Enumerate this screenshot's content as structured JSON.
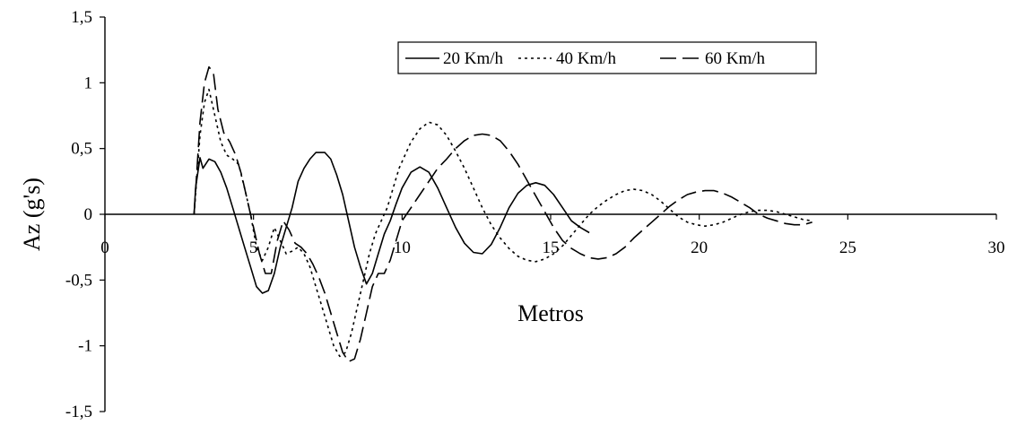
{
  "chart_data": {
    "type": "line",
    "title": "",
    "xlabel": "Metros",
    "ylabel": "Az (g's)",
    "xlim": [
      0,
      30
    ],
    "ylim": [
      -1.5,
      1.5
    ],
    "xticks": [
      0,
      5,
      10,
      15,
      20,
      25,
      30
    ],
    "xtick_labels": [
      "0",
      "5",
      "10",
      "15",
      "20",
      "25",
      "30"
    ],
    "yticks": [
      -1.5,
      -1,
      -0.5,
      0,
      0.5,
      1,
      1.5
    ],
    "ytick_labels": [
      "-1,5",
      "-1",
      "-0,5",
      "0",
      "0,5",
      "1",
      "1,5"
    ],
    "grid": false,
    "legend_position": "top-right",
    "series": [
      {
        "name": "20 Km/h",
        "style": "solid",
        "points": [
          [
            3.0,
            0
          ],
          [
            3.05,
            0.2
          ],
          [
            3.2,
            0.43
          ],
          [
            3.3,
            0.35
          ],
          [
            3.5,
            0.42
          ],
          [
            3.7,
            0.4
          ],
          [
            3.9,
            0.32
          ],
          [
            4.1,
            0.2
          ],
          [
            4.3,
            0.05
          ],
          [
            4.5,
            -0.1
          ],
          [
            4.7,
            -0.25
          ],
          [
            4.9,
            -0.4
          ],
          [
            5.1,
            -0.55
          ],
          [
            5.3,
            -0.6
          ],
          [
            5.5,
            -0.58
          ],
          [
            5.7,
            -0.45
          ],
          [
            5.9,
            -0.25
          ],
          [
            6.1,
            -0.1
          ],
          [
            6.3,
            0.05
          ],
          [
            6.5,
            0.25
          ],
          [
            6.7,
            0.35
          ],
          [
            6.9,
            0.42
          ],
          [
            7.1,
            0.47
          ],
          [
            7.4,
            0.47
          ],
          [
            7.6,
            0.42
          ],
          [
            7.8,
            0.3
          ],
          [
            8.0,
            0.15
          ],
          [
            8.2,
            -0.05
          ],
          [
            8.4,
            -0.25
          ],
          [
            8.6,
            -0.4
          ],
          [
            8.8,
            -0.53
          ],
          [
            9.0,
            -0.45
          ],
          [
            9.2,
            -0.3
          ],
          [
            9.4,
            -0.15
          ],
          [
            9.6,
            -0.05
          ],
          [
            9.8,
            0.08
          ],
          [
            10.0,
            0.2
          ],
          [
            10.3,
            0.32
          ],
          [
            10.6,
            0.36
          ],
          [
            10.9,
            0.32
          ],
          [
            11.2,
            0.2
          ],
          [
            11.5,
            0.05
          ],
          [
            11.8,
            -0.1
          ],
          [
            12.1,
            -0.22
          ],
          [
            12.4,
            -0.29
          ],
          [
            12.7,
            -0.3
          ],
          [
            13.0,
            -0.23
          ],
          [
            13.3,
            -0.1
          ],
          [
            13.6,
            0.05
          ],
          [
            13.9,
            0.16
          ],
          [
            14.2,
            0.22
          ],
          [
            14.5,
            0.24
          ],
          [
            14.8,
            0.22
          ],
          [
            15.1,
            0.15
          ],
          [
            15.4,
            0.05
          ],
          [
            15.7,
            -0.05
          ],
          [
            16.0,
            -0.1
          ],
          [
            16.3,
            -0.14
          ]
        ]
      },
      {
        "name": "40 Km/h",
        "style": "dotted",
        "points": [
          [
            3.0,
            0
          ],
          [
            3.1,
            0.3
          ],
          [
            3.2,
            0.6
          ],
          [
            3.35,
            0.85
          ],
          [
            3.5,
            0.95
          ],
          [
            3.7,
            0.75
          ],
          [
            3.9,
            0.55
          ],
          [
            4.1,
            0.45
          ],
          [
            4.3,
            0.42
          ],
          [
            4.5,
            0.38
          ],
          [
            4.7,
            0.2
          ],
          [
            4.9,
            0.0
          ],
          [
            5.1,
            -0.25
          ],
          [
            5.3,
            -0.35
          ],
          [
            5.5,
            -0.25
          ],
          [
            5.7,
            -0.1
          ],
          [
            5.9,
            -0.2
          ],
          [
            6.1,
            -0.3
          ],
          [
            6.3,
            -0.28
          ],
          [
            6.5,
            -0.25
          ],
          [
            6.7,
            -0.3
          ],
          [
            6.9,
            -0.4
          ],
          [
            7.1,
            -0.55
          ],
          [
            7.3,
            -0.7
          ],
          [
            7.5,
            -0.85
          ],
          [
            7.7,
            -1.0
          ],
          [
            7.9,
            -1.08
          ],
          [
            8.1,
            -1.05
          ],
          [
            8.3,
            -0.9
          ],
          [
            8.5,
            -0.7
          ],
          [
            8.7,
            -0.5
          ],
          [
            8.9,
            -0.3
          ],
          [
            9.1,
            -0.15
          ],
          [
            9.3,
            -0.05
          ],
          [
            9.5,
            0.05
          ],
          [
            9.7,
            0.2
          ],
          [
            9.9,
            0.35
          ],
          [
            10.1,
            0.45
          ],
          [
            10.3,
            0.55
          ],
          [
            10.6,
            0.65
          ],
          [
            10.9,
            0.7
          ],
          [
            11.2,
            0.68
          ],
          [
            11.5,
            0.6
          ],
          [
            11.8,
            0.48
          ],
          [
            12.1,
            0.35
          ],
          [
            12.4,
            0.2
          ],
          [
            12.7,
            0.05
          ],
          [
            13.0,
            -0.08
          ],
          [
            13.3,
            -0.18
          ],
          [
            13.6,
            -0.26
          ],
          [
            13.9,
            -0.32
          ],
          [
            14.2,
            -0.35
          ],
          [
            14.5,
            -0.36
          ],
          [
            14.8,
            -0.34
          ],
          [
            15.1,
            -0.3
          ],
          [
            15.4,
            -0.24
          ],
          [
            15.7,
            -0.16
          ],
          [
            16.0,
            -0.08
          ],
          [
            16.3,
            0.0
          ],
          [
            16.6,
            0.06
          ],
          [
            16.9,
            0.11
          ],
          [
            17.2,
            0.15
          ],
          [
            17.5,
            0.18
          ],
          [
            17.8,
            0.19
          ],
          [
            18.1,
            0.18
          ],
          [
            18.4,
            0.15
          ],
          [
            18.7,
            0.1
          ],
          [
            19.0,
            0.04
          ],
          [
            19.3,
            -0.02
          ],
          [
            19.6,
            -0.06
          ],
          [
            19.9,
            -0.08
          ],
          [
            20.2,
            -0.09
          ],
          [
            20.5,
            -0.08
          ],
          [
            20.8,
            -0.06
          ],
          [
            21.1,
            -0.03
          ],
          [
            21.4,
            0.0
          ],
          [
            21.7,
            0.02
          ],
          [
            22.0,
            0.03
          ],
          [
            22.3,
            0.03
          ],
          [
            22.6,
            0.02
          ],
          [
            22.9,
            0.0
          ],
          [
            23.2,
            -0.02
          ],
          [
            23.5,
            -0.04
          ],
          [
            23.8,
            -0.05
          ]
        ]
      },
      {
        "name": "60 Km/h",
        "style": "dashed",
        "points": [
          [
            3.0,
            0
          ],
          [
            3.1,
            0.35
          ],
          [
            3.2,
            0.7
          ],
          [
            3.35,
            1.0
          ],
          [
            3.5,
            1.12
          ],
          [
            3.65,
            1.08
          ],
          [
            3.8,
            0.8
          ],
          [
            4.0,
            0.62
          ],
          [
            4.2,
            0.55
          ],
          [
            4.4,
            0.45
          ],
          [
            4.6,
            0.3
          ],
          [
            4.8,
            0.1
          ],
          [
            5.0,
            -0.1
          ],
          [
            5.2,
            -0.3
          ],
          [
            5.4,
            -0.45
          ],
          [
            5.6,
            -0.45
          ],
          [
            5.8,
            -0.2
          ],
          [
            6.0,
            -0.05
          ],
          [
            6.2,
            -0.12
          ],
          [
            6.4,
            -0.22
          ],
          [
            6.6,
            -0.25
          ],
          [
            6.8,
            -0.3
          ],
          [
            7.0,
            -0.38
          ],
          [
            7.2,
            -0.48
          ],
          [
            7.4,
            -0.6
          ],
          [
            7.6,
            -0.75
          ],
          [
            7.8,
            -0.9
          ],
          [
            8.0,
            -1.05
          ],
          [
            8.2,
            -1.12
          ],
          [
            8.4,
            -1.1
          ],
          [
            8.6,
            -0.95
          ],
          [
            8.8,
            -0.75
          ],
          [
            9.0,
            -0.55
          ],
          [
            9.2,
            -0.45
          ],
          [
            9.4,
            -0.45
          ],
          [
            9.6,
            -0.35
          ],
          [
            9.8,
            -0.2
          ],
          [
            10.0,
            -0.05
          ],
          [
            10.3,
            0.05
          ],
          [
            10.6,
            0.15
          ],
          [
            10.9,
            0.25
          ],
          [
            11.2,
            0.35
          ],
          [
            11.5,
            0.42
          ],
          [
            11.8,
            0.5
          ],
          [
            12.1,
            0.56
          ],
          [
            12.4,
            0.6
          ],
          [
            12.7,
            0.61
          ],
          [
            13.0,
            0.6
          ],
          [
            13.3,
            0.56
          ],
          [
            13.6,
            0.48
          ],
          [
            13.9,
            0.38
          ],
          [
            14.2,
            0.26
          ],
          [
            14.5,
            0.14
          ],
          [
            14.8,
            0.02
          ],
          [
            15.1,
            -0.1
          ],
          [
            15.4,
            -0.2
          ],
          [
            15.7,
            -0.26
          ],
          [
            16.0,
            -0.3
          ],
          [
            16.3,
            -0.33
          ],
          [
            16.6,
            -0.34
          ],
          [
            16.9,
            -0.33
          ],
          [
            17.2,
            -0.3
          ],
          [
            17.5,
            -0.25
          ],
          [
            17.8,
            -0.18
          ],
          [
            18.1,
            -0.12
          ],
          [
            18.4,
            -0.06
          ],
          [
            18.7,
            0.0
          ],
          [
            19.0,
            0.06
          ],
          [
            19.3,
            0.11
          ],
          [
            19.6,
            0.15
          ],
          [
            19.9,
            0.17
          ],
          [
            20.2,
            0.18
          ],
          [
            20.5,
            0.18
          ],
          [
            20.8,
            0.16
          ],
          [
            21.1,
            0.13
          ],
          [
            21.4,
            0.09
          ],
          [
            21.7,
            0.05
          ],
          [
            22.0,
            0.0
          ],
          [
            22.3,
            -0.03
          ],
          [
            22.6,
            -0.05
          ],
          [
            22.9,
            -0.07
          ],
          [
            23.2,
            -0.08
          ],
          [
            23.5,
            -0.08
          ],
          [
            23.8,
            -0.06
          ]
        ]
      }
    ]
  }
}
